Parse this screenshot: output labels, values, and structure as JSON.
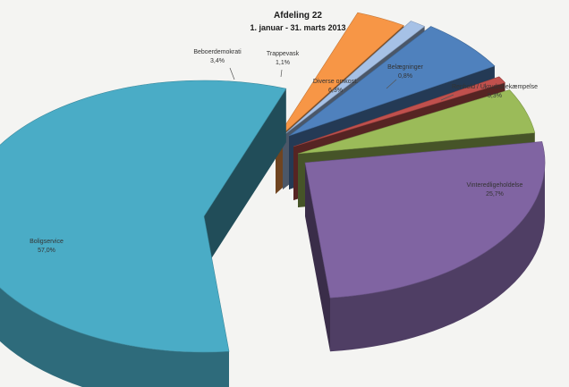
{
  "chart_data": {
    "type": "pie",
    "title": "Afdeling 22",
    "subtitle": "1. januar - 31. marts 2013",
    "slices": [
      {
        "label": "Boligservice",
        "value": 57.0,
        "value_label": "57,0%",
        "color": "#4aacc6"
      },
      {
        "label": "Beboerdemokrati",
        "value": 3.4,
        "value_label": "3,4%",
        "color": "#f79646"
      },
      {
        "label": "Trappevask",
        "value": 1.1,
        "value_label": "1,1%",
        "color": "#a6c1e6"
      },
      {
        "label": "Diverse omkost.",
        "value": 6.3,
        "value_label": "6,3%",
        "color": "#4f81bd"
      },
      {
        "label": "Belægninger",
        "value": 0.8,
        "value_label": "0,8%",
        "color": "#c0504d"
      },
      {
        "label": "Renhold / Ukrudtsbekæmpelse",
        "value": 5.3,
        "value_label": "5,3%",
        "color": "#9bbb59"
      },
      {
        "label": "Vinteredligeholdelse",
        "value": 25.7,
        "value_label": "25,7%",
        "color": "#8064a2"
      }
    ]
  }
}
